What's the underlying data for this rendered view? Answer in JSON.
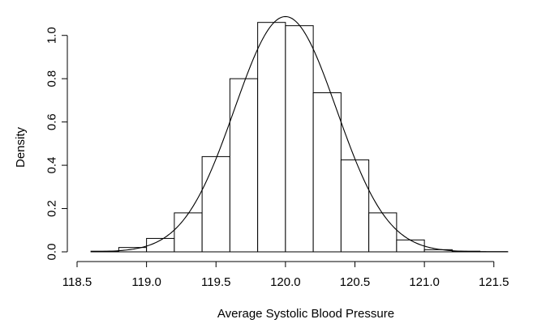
{
  "chart_data": {
    "type": "bar",
    "title": "",
    "xlabel": "Average Systolic Blood Pressure",
    "ylabel": "Density",
    "xlim": [
      118.5,
      121.7
    ],
    "ylim": [
      0,
      1.1
    ],
    "x_ticks": [
      {
        "value": 118.5,
        "label": "118.5"
      },
      {
        "value": 119.0,
        "label": "119.0"
      },
      {
        "value": 119.5,
        "label": "119.5"
      },
      {
        "value": 120.0,
        "label": "120.0"
      },
      {
        "value": 120.5,
        "label": "120.5"
      },
      {
        "value": 121.0,
        "label": "121.0"
      },
      {
        "value": 121.5,
        "label": "121.5"
      }
    ],
    "y_ticks": [
      {
        "value": 0.0,
        "label": "0.0"
      },
      {
        "value": 0.2,
        "label": "0.2"
      },
      {
        "value": 0.4,
        "label": "0.4"
      },
      {
        "value": 0.6,
        "label": "0.6"
      },
      {
        "value": 0.8,
        "label": "0.8"
      },
      {
        "value": 1.0,
        "label": "1.0"
      }
    ],
    "bins": [
      {
        "x0": 118.6,
        "x1": 118.8,
        "density": 0.003
      },
      {
        "x0": 118.8,
        "x1": 119.0,
        "density": 0.02
      },
      {
        "x0": 119.0,
        "x1": 119.2,
        "density": 0.062
      },
      {
        "x0": 119.2,
        "x1": 119.4,
        "density": 0.18
      },
      {
        "x0": 119.4,
        "x1": 119.6,
        "density": 0.44
      },
      {
        "x0": 119.6,
        "x1": 119.8,
        "density": 0.8
      },
      {
        "x0": 119.8,
        "x1": 120.0,
        "density": 1.06
      },
      {
        "x0": 120.0,
        "x1": 120.2,
        "density": 1.045
      },
      {
        "x0": 120.2,
        "x1": 120.4,
        "density": 0.735
      },
      {
        "x0": 120.4,
        "x1": 120.6,
        "density": 0.425
      },
      {
        "x0": 120.6,
        "x1": 120.8,
        "density": 0.18
      },
      {
        "x0": 120.8,
        "x1": 121.0,
        "density": 0.055
      },
      {
        "x0": 121.0,
        "x1": 121.2,
        "density": 0.01
      },
      {
        "x0": 121.2,
        "x1": 121.4,
        "density": 0.003
      },
      {
        "x0": 121.4,
        "x1": 121.6,
        "density": 0.001
      }
    ],
    "curve": {
      "type": "normal-density",
      "mean": 120.0,
      "sd": 0.367,
      "x_range": [
        118.6,
        121.6
      ]
    },
    "grid": false,
    "legend": "none"
  }
}
